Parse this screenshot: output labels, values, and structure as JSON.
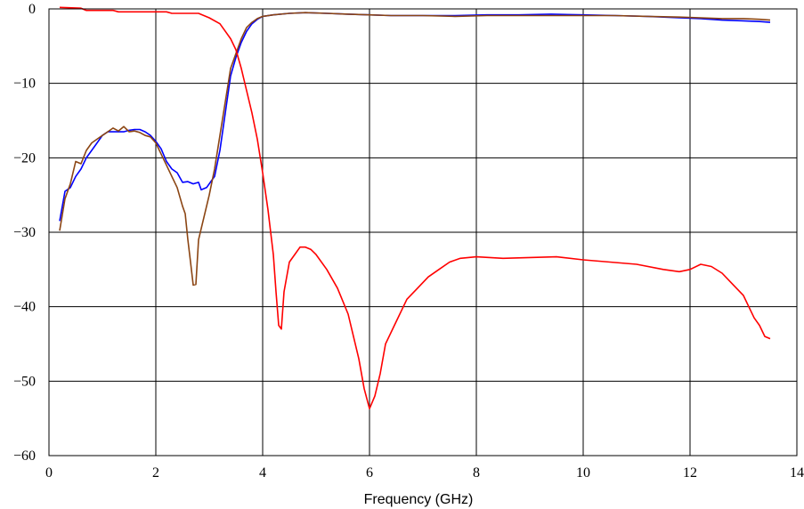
{
  "chart_data": {
    "type": "line",
    "title": "",
    "xlabel": "Frequency (GHz)",
    "ylabel": "",
    "xlim": [
      0,
      14
    ],
    "ylim": [
      -60,
      0
    ],
    "xticks": [
      0,
      2,
      4,
      6,
      8,
      10,
      12,
      14
    ],
    "yticks": [
      0,
      -10,
      -20,
      -30,
      -40,
      -50,
      -60
    ],
    "xtick_labels": [
      "0",
      "2",
      "4",
      "6",
      "8",
      "10",
      "12",
      "14"
    ],
    "ytick_labels": [
      "0",
      "−10",
      "−20",
      "−30",
      "−40",
      "−50",
      "−60"
    ],
    "grid": true,
    "legend": "none",
    "series": [
      {
        "color": "#0000ff",
        "points": [
          [
            0.2,
            -28.5
          ],
          [
            0.3,
            -24.5
          ],
          [
            0.4,
            -24
          ],
          [
            0.5,
            -22.5
          ],
          [
            0.6,
            -21.5
          ],
          [
            0.7,
            -20
          ],
          [
            0.8,
            -19
          ],
          [
            0.9,
            -18
          ],
          [
            1.0,
            -17
          ],
          [
            1.1,
            -16.5
          ],
          [
            1.2,
            -16.5
          ],
          [
            1.3,
            -16.5
          ],
          [
            1.4,
            -16.5
          ],
          [
            1.5,
            -16.3
          ],
          [
            1.6,
            -16.2
          ],
          [
            1.7,
            -16.2
          ],
          [
            1.8,
            -16.5
          ],
          [
            1.9,
            -17
          ],
          [
            2.0,
            -17.8
          ],
          [
            2.1,
            -18.8
          ],
          [
            2.2,
            -20.5
          ],
          [
            2.3,
            -21.5
          ],
          [
            2.4,
            -22
          ],
          [
            2.5,
            -23.3
          ],
          [
            2.6,
            -23.2
          ],
          [
            2.7,
            -23.5
          ],
          [
            2.8,
            -23.3
          ],
          [
            2.85,
            -24.3
          ],
          [
            2.95,
            -24.0
          ],
          [
            3.05,
            -23
          ],
          [
            3.1,
            -22.5
          ],
          [
            3.2,
            -19
          ],
          [
            3.3,
            -14
          ],
          [
            3.4,
            -9
          ],
          [
            3.5,
            -6.5
          ],
          [
            3.6,
            -4.5
          ],
          [
            3.7,
            -3
          ],
          [
            3.8,
            -2
          ],
          [
            3.9,
            -1.4
          ],
          [
            4.0,
            -1
          ],
          [
            4.2,
            -0.8
          ],
          [
            4.5,
            -0.6
          ],
          [
            4.8,
            -0.5
          ],
          [
            5.2,
            -0.6
          ],
          [
            5.6,
            -0.7
          ],
          [
            6.0,
            -0.8
          ],
          [
            6.4,
            -0.9
          ],
          [
            7.0,
            -0.9
          ],
          [
            7.6,
            -0.9
          ],
          [
            8.2,
            -0.8
          ],
          [
            8.8,
            -0.8
          ],
          [
            9.4,
            -0.7
          ],
          [
            10.0,
            -0.8
          ],
          [
            10.6,
            -0.9
          ],
          [
            11.2,
            -1.0
          ],
          [
            11.8,
            -1.2
          ],
          [
            12.2,
            -1.3
          ],
          [
            12.6,
            -1.5
          ],
          [
            13.0,
            -1.6
          ],
          [
            13.3,
            -1.7
          ],
          [
            13.5,
            -1.8
          ]
        ]
      },
      {
        "color": "#8b4513",
        "points": [
          [
            0.2,
            -29.8
          ],
          [
            0.3,
            -25.5
          ],
          [
            0.4,
            -23.5
          ],
          [
            0.5,
            -20.5
          ],
          [
            0.6,
            -20.8
          ],
          [
            0.7,
            -19
          ],
          [
            0.8,
            -18
          ],
          [
            0.9,
            -17.5
          ],
          [
            1.0,
            -17
          ],
          [
            1.1,
            -16.5
          ],
          [
            1.2,
            -16
          ],
          [
            1.3,
            -16.4
          ],
          [
            1.4,
            -15.8
          ],
          [
            1.5,
            -16.5
          ],
          [
            1.6,
            -16.4
          ],
          [
            1.7,
            -16.6
          ],
          [
            1.8,
            -17
          ],
          [
            1.9,
            -17.2
          ],
          [
            2.0,
            -18
          ],
          [
            2.1,
            -19.5
          ],
          [
            2.2,
            -21
          ],
          [
            2.3,
            -22.5
          ],
          [
            2.4,
            -24
          ],
          [
            2.5,
            -26.5
          ],
          [
            2.55,
            -27.5
          ],
          [
            2.6,
            -31
          ],
          [
            2.65,
            -34
          ],
          [
            2.7,
            -37.1
          ],
          [
            2.75,
            -37
          ],
          [
            2.8,
            -31
          ],
          [
            2.9,
            -28
          ],
          [
            3.0,
            -25
          ],
          [
            3.1,
            -21.5
          ],
          [
            3.2,
            -17
          ],
          [
            3.3,
            -12.5
          ],
          [
            3.4,
            -8
          ],
          [
            3.5,
            -6
          ],
          [
            3.6,
            -4
          ],
          [
            3.7,
            -2.5
          ],
          [
            3.8,
            -1.8
          ],
          [
            3.9,
            -1.3
          ],
          [
            4.0,
            -1
          ],
          [
            4.2,
            -0.8
          ],
          [
            4.5,
            -0.6
          ],
          [
            4.8,
            -0.5
          ],
          [
            5.2,
            -0.6
          ],
          [
            5.6,
            -0.7
          ],
          [
            6.0,
            -0.8
          ],
          [
            6.4,
            -0.9
          ],
          [
            7.0,
            -0.9
          ],
          [
            7.6,
            -1.0
          ],
          [
            8.2,
            -0.9
          ],
          [
            8.8,
            -0.9
          ],
          [
            9.4,
            -0.9
          ],
          [
            10.0,
            -0.9
          ],
          [
            10.6,
            -0.9
          ],
          [
            11.2,
            -1.0
          ],
          [
            11.8,
            -1.1
          ],
          [
            12.2,
            -1.2
          ],
          [
            12.6,
            -1.3
          ],
          [
            13.0,
            -1.3
          ],
          [
            13.3,
            -1.4
          ],
          [
            13.5,
            -1.5
          ]
        ]
      },
      {
        "color": "#ff0000",
        "points": [
          [
            0.2,
            0.2
          ],
          [
            0.6,
            0.1
          ],
          [
            0.7,
            -0.2
          ],
          [
            1.2,
            -0.2
          ],
          [
            1.3,
            -0.4
          ],
          [
            2.2,
            -0.4
          ],
          [
            2.3,
            -0.6
          ],
          [
            2.8,
            -0.6
          ],
          [
            3.0,
            -1.2
          ],
          [
            3.2,
            -2
          ],
          [
            3.4,
            -4
          ],
          [
            3.5,
            -5.5
          ],
          [
            3.6,
            -8
          ],
          [
            3.7,
            -11
          ],
          [
            3.8,
            -14
          ],
          [
            3.9,
            -17.5
          ],
          [
            4.0,
            -22
          ],
          [
            4.1,
            -27
          ],
          [
            4.2,
            -33
          ],
          [
            4.25,
            -38
          ],
          [
            4.3,
            -42.5
          ],
          [
            4.35,
            -43
          ],
          [
            4.4,
            -38
          ],
          [
            4.5,
            -34
          ],
          [
            4.6,
            -33
          ],
          [
            4.7,
            -32
          ],
          [
            4.8,
            -32
          ],
          [
            4.9,
            -32.3
          ],
          [
            5.0,
            -33
          ],
          [
            5.2,
            -35
          ],
          [
            5.4,
            -37.5
          ],
          [
            5.6,
            -41
          ],
          [
            5.8,
            -47
          ],
          [
            5.9,
            -51
          ],
          [
            6.0,
            -53.7
          ],
          [
            6.1,
            -52
          ],
          [
            6.2,
            -49
          ],
          [
            6.3,
            -45
          ],
          [
            6.5,
            -42
          ],
          [
            6.7,
            -39
          ],
          [
            6.9,
            -37.5
          ],
          [
            7.1,
            -36
          ],
          [
            7.3,
            -35
          ],
          [
            7.5,
            -34
          ],
          [
            7.7,
            -33.5
          ],
          [
            8.0,
            -33.3
          ],
          [
            8.5,
            -33.5
          ],
          [
            9.0,
            -33.4
          ],
          [
            9.5,
            -33.3
          ],
          [
            10.0,
            -33.7
          ],
          [
            10.5,
            -34
          ],
          [
            11.0,
            -34.3
          ],
          [
            11.5,
            -35
          ],
          [
            11.8,
            -35.3
          ],
          [
            12.0,
            -35
          ],
          [
            12.2,
            -34.3
          ],
          [
            12.4,
            -34.6
          ],
          [
            12.6,
            -35.5
          ],
          [
            12.8,
            -37
          ],
          [
            13.0,
            -38.5
          ],
          [
            13.1,
            -40
          ],
          [
            13.2,
            -41.5
          ],
          [
            13.3,
            -42.5
          ],
          [
            13.4,
            -44
          ],
          [
            13.5,
            -44.3
          ]
        ]
      }
    ]
  }
}
